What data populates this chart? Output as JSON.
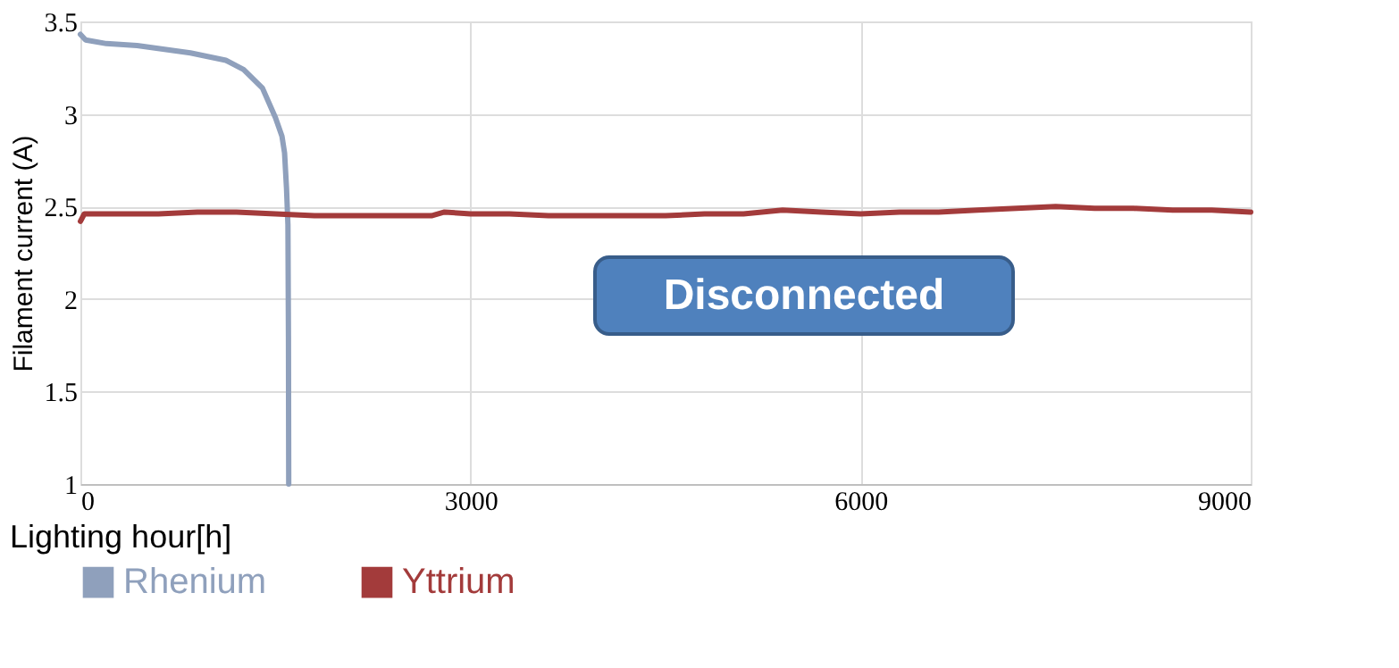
{
  "chart_data": {
    "type": "line",
    "xlabel": "Lighting hour[h]",
    "ylabel": "Filament current (A)",
    "xlim": [
      0,
      9000
    ],
    "xticks": [
      0,
      3000,
      6000,
      9000
    ],
    "ylim": [
      1,
      3.5
    ],
    "yticks": [
      1,
      1.5,
      2,
      2.5,
      3,
      3.5
    ],
    "grid": true,
    "legend": "bottom",
    "annotations": [
      "Disconnected"
    ],
    "series": [
      {
        "name": "Rhenium",
        "color": "#8fa0bc",
        "x": [
          0,
          40,
          200,
          436,
          846,
          1118,
          1255,
          1400,
          1500,
          1550,
          1570,
          1585,
          1596,
          1600,
          1602
        ],
        "values": [
          3.43,
          3.4,
          3.38,
          3.37,
          3.33,
          3.29,
          3.24,
          3.14,
          2.98,
          2.88,
          2.79,
          2.6,
          2.4,
          1.8,
          1.0
        ]
      },
      {
        "name": "Yttrium",
        "color": "#a33b3b",
        "x": [
          0,
          30,
          300,
          600,
          900,
          1200,
          1500,
          1800,
          2100,
          2400,
          2700,
          2800,
          3000,
          3300,
          3600,
          3900,
          4200,
          4500,
          4800,
          5100,
          5400,
          5700,
          6000,
          6300,
          6600,
          6900,
          7200,
          7500,
          7800,
          8100,
          8400,
          8700,
          9000
        ],
        "values": [
          2.42,
          2.46,
          2.46,
          2.46,
          2.47,
          2.47,
          2.46,
          2.45,
          2.45,
          2.45,
          2.45,
          2.47,
          2.46,
          2.46,
          2.45,
          2.45,
          2.45,
          2.45,
          2.46,
          2.46,
          2.48,
          2.47,
          2.46,
          2.47,
          2.47,
          2.48,
          2.49,
          2.5,
          2.49,
          2.49,
          2.48,
          2.48,
          2.47
        ]
      }
    ]
  }
}
